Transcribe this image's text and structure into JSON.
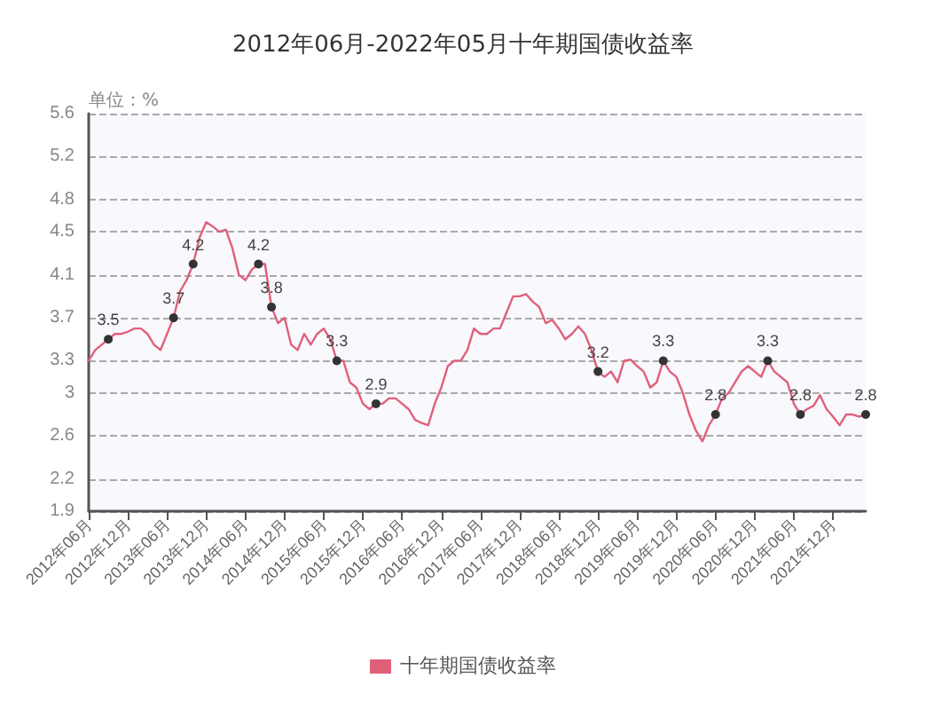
{
  "chart_data": {
    "type": "line",
    "title": "2012年06月-2022年05月十年期国债收益率",
    "annotations": [
      "单位：%"
    ],
    "categories": [
      "2012年06月",
      null,
      null,
      null,
      null,
      null,
      "2012年12月",
      null,
      null,
      null,
      null,
      null,
      "2013年06月",
      null,
      null,
      null,
      null,
      null,
      "2013年12月",
      null,
      null,
      null,
      null,
      null,
      "2014年06月",
      null,
      null,
      null,
      null,
      null,
      "2014年12月",
      null,
      null,
      null,
      null,
      null,
      "2015年06月",
      null,
      null,
      null,
      null,
      null,
      "2015年12月",
      null,
      null,
      null,
      null,
      null,
      "2016年06月",
      null,
      null,
      null,
      null,
      null,
      "2016年12月",
      null,
      null,
      null,
      null,
      null,
      "2017年06月",
      null,
      null,
      null,
      null,
      null,
      "2017年12月",
      null,
      null,
      null,
      null,
      null,
      "2018年06月",
      null,
      null,
      null,
      null,
      null,
      "2018年12月",
      null,
      null,
      null,
      null,
      null,
      "2019年06月",
      null,
      null,
      null,
      null,
      null,
      "2019年12月",
      null,
      null,
      null,
      null,
      null,
      "2020年06月",
      null,
      null,
      null,
      null,
      null,
      "2020年12月",
      null,
      null,
      null,
      null,
      null,
      "2021年06月",
      null,
      null,
      null,
      null,
      null,
      "2021年12月",
      null,
      null,
      null,
      null,
      null
    ],
    "series": [
      {
        "name": "十年期国债收益率",
        "color": "#e0607a",
        "values": [
          3.3,
          3.4,
          3.45,
          3.5,
          3.55,
          3.55,
          3.57,
          3.6,
          3.6,
          3.55,
          3.45,
          3.4,
          3.55,
          3.7,
          3.95,
          4.05,
          4.2,
          4.45,
          4.59,
          4.55,
          4.5,
          4.52,
          4.35,
          4.1,
          4.05,
          4.15,
          4.2,
          4.2,
          3.8,
          3.65,
          3.7,
          3.45,
          3.4,
          3.55,
          3.45,
          3.55,
          3.6,
          3.5,
          3.3,
          3.3,
          3.1,
          3.05,
          2.9,
          2.85,
          2.9,
          2.9,
          2.95,
          2.95,
          2.9,
          2.85,
          2.75,
          2.72,
          2.7,
          2.9,
          3.05,
          3.25,
          3.3,
          3.3,
          3.4,
          3.6,
          3.55,
          3.55,
          3.6,
          3.6,
          3.75,
          3.9,
          3.9,
          3.92,
          3.85,
          3.8,
          3.65,
          3.68,
          3.6,
          3.5,
          3.55,
          3.62,
          3.55,
          3.4,
          3.2,
          3.15,
          3.2,
          3.1,
          3.3,
          3.31,
          3.25,
          3.2,
          3.05,
          3.1,
          3.3,
          3.2,
          3.15,
          3.0,
          2.8,
          2.65,
          2.55,
          2.7,
          2.8,
          2.95,
          3.0,
          3.1,
          3.2,
          3.25,
          3.2,
          3.15,
          3.3,
          3.2,
          3.15,
          3.1,
          2.9,
          2.8,
          2.85,
          2.88,
          2.98,
          2.85,
          2.78,
          2.7,
          2.8,
          2.8,
          2.78,
          2.8
        ],
        "value_labels": [
          null,
          null,
          null,
          "3.5",
          null,
          null,
          null,
          null,
          null,
          null,
          null,
          null,
          null,
          "3.7",
          null,
          null,
          "4.2",
          null,
          null,
          null,
          null,
          null,
          null,
          null,
          null,
          null,
          "4.2",
          null,
          "3.8",
          null,
          null,
          null,
          null,
          null,
          null,
          null,
          null,
          null,
          "3.3",
          null,
          null,
          null,
          null,
          null,
          "2.9",
          null,
          null,
          null,
          null,
          null,
          null,
          null,
          null,
          null,
          null,
          null,
          null,
          null,
          null,
          null,
          null,
          null,
          null,
          null,
          null,
          null,
          null,
          null,
          null,
          null,
          null,
          null,
          null,
          null,
          null,
          null,
          null,
          null,
          "3.2",
          null,
          null,
          null,
          null,
          null,
          null,
          null,
          null,
          null,
          "3.3",
          null,
          null,
          null,
          null,
          null,
          null,
          null,
          "2.8",
          null,
          null,
          null,
          null,
          null,
          null,
          null,
          "3.3",
          null,
          null,
          null,
          null,
          "2.8",
          null,
          null,
          null,
          null,
          null,
          null,
          null,
          null,
          null,
          "2.8"
        ]
      }
    ],
    "ylim": [
      1.9,
      5.6
    ],
    "yticks": [
      1.9,
      2.2,
      2.6,
      3,
      3.3,
      3.7,
      4.1,
      4.5,
      4.8,
      5.2,
      5.6
    ],
    "grid": "y",
    "legend": "bottom",
    "line_style": "solid"
  }
}
